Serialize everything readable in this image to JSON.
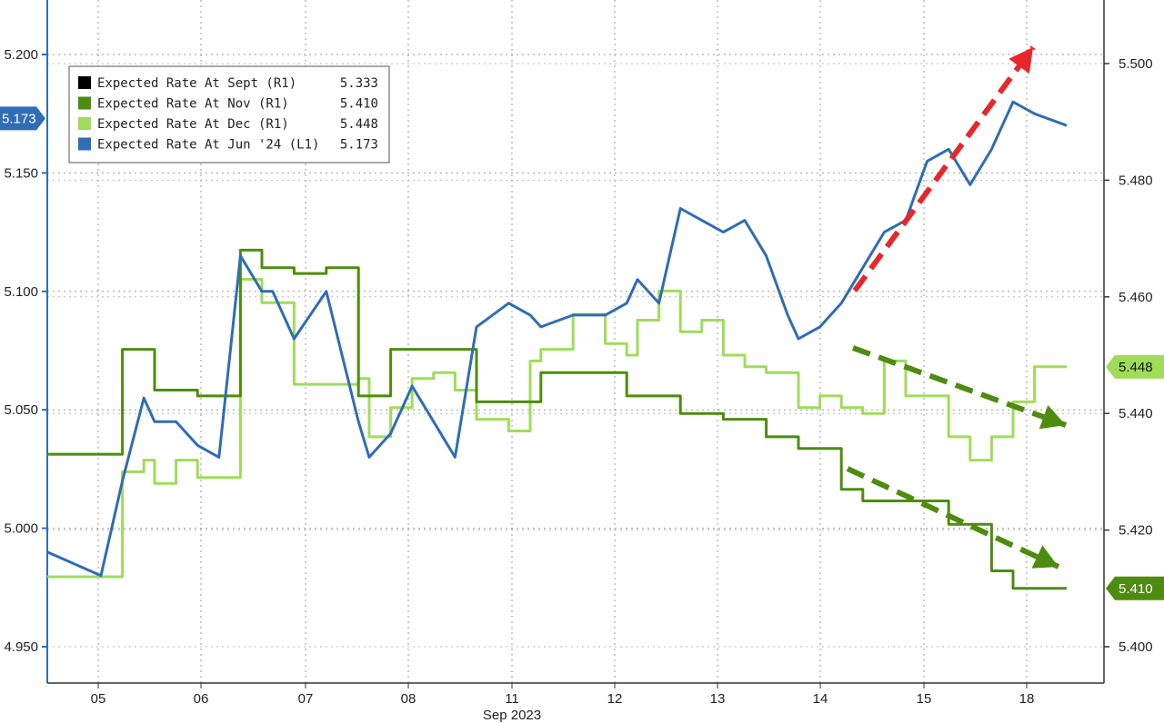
{
  "chart_data": {
    "type": "line",
    "xlabel": "Sep 2023",
    "x_ticks": [
      "05",
      "06",
      "07",
      "08",
      "11",
      "12",
      "13",
      "14",
      "15",
      "18"
    ],
    "left_axis": {
      "ylim": [
        4.95,
        5.2
      ],
      "ticks": [
        "4.950",
        "5.000",
        "5.050",
        "5.100",
        "5.150",
        "5.200"
      ]
    },
    "right_axis": {
      "ylim": [
        5.4,
        5.5
      ],
      "ticks": [
        "5.400",
        "5.420",
        "5.440",
        "5.460",
        "5.480",
        "5.500"
      ]
    },
    "grid": true,
    "legend_position": "top-left",
    "series": [
      {
        "name": "Expected Rate At Sept (R1)",
        "last": "5.333",
        "axis": "right",
        "color": "#000000",
        "x": [],
        "y": []
      },
      {
        "name": "Expected Rate At Nov (R1)",
        "last": "5.410",
        "axis": "right",
        "color": "#4e8c0f",
        "x": [
          0.0,
          0.5,
          0.7,
          0.9,
          1.0,
          1.2,
          1.4,
          1.6,
          1.8,
          2.0,
          2.1,
          2.3,
          2.6,
          2.9,
          3.0,
          3.2,
          3.4,
          3.6,
          3.8,
          4.0,
          4.3,
          4.5,
          4.6,
          4.9,
          5.2,
          5.4,
          5.5,
          5.7,
          5.9,
          6.1,
          6.3,
          6.5,
          6.7,
          6.9,
          7.0,
          7.2,
          7.4,
          7.6,
          7.8,
          8.0,
          8.2,
          8.4,
          8.6,
          8.8,
          9.0,
          9.2,
          9.5
        ],
        "y": [
          5.433,
          5.433,
          5.451,
          5.451,
          5.444,
          5.444,
          5.443,
          5.443,
          5.468,
          5.465,
          5.465,
          5.464,
          5.465,
          5.443,
          5.443,
          5.451,
          5.451,
          5.451,
          5.451,
          5.442,
          5.442,
          5.442,
          5.447,
          5.447,
          5.447,
          5.443,
          5.443,
          5.443,
          5.44,
          5.44,
          5.439,
          5.439,
          5.436,
          5.436,
          5.434,
          5.434,
          5.427,
          5.425,
          5.425,
          5.425,
          5.425,
          5.421,
          5.421,
          5.413,
          5.41,
          5.41,
          5.41
        ]
      },
      {
        "name": "Expected Rate At Dec (R1)",
        "last": "5.448",
        "axis": "right",
        "color": "#9fdc5a",
        "x": [
          0.0,
          0.5,
          0.7,
          0.9,
          1.0,
          1.2,
          1.4,
          1.6,
          1.8,
          2.0,
          2.1,
          2.3,
          2.6,
          2.9,
          3.0,
          3.2,
          3.4,
          3.6,
          3.8,
          4.0,
          4.3,
          4.5,
          4.6,
          4.9,
          5.2,
          5.4,
          5.5,
          5.7,
          5.9,
          6.1,
          6.3,
          6.5,
          6.7,
          6.9,
          7.0,
          7.2,
          7.4,
          7.6,
          7.8,
          8.0,
          8.2,
          8.4,
          8.6,
          8.8,
          9.0,
          9.2,
          9.5
        ],
        "y": [
          5.412,
          5.412,
          5.43,
          5.432,
          5.428,
          5.432,
          5.429,
          5.429,
          5.463,
          5.459,
          5.459,
          5.445,
          5.445,
          5.446,
          5.436,
          5.441,
          5.446,
          5.447,
          5.444,
          5.439,
          5.437,
          5.449,
          5.451,
          5.457,
          5.452,
          5.45,
          5.456,
          5.461,
          5.454,
          5.456,
          5.45,
          5.448,
          5.447,
          5.447,
          5.441,
          5.443,
          5.441,
          5.44,
          5.449,
          5.443,
          5.443,
          5.436,
          5.432,
          5.436,
          5.442,
          5.448,
          5.448
        ]
      },
      {
        "name": "Expected Rate At Jun '24 (L1)",
        "last": "5.173",
        "axis": "left",
        "color": "#2f6db4",
        "x": [
          0.0,
          0.5,
          0.7,
          0.9,
          1.0,
          1.2,
          1.4,
          1.6,
          1.8,
          2.0,
          2.1,
          2.3,
          2.6,
          2.9,
          3.0,
          3.2,
          3.4,
          3.6,
          3.8,
          4.0,
          4.3,
          4.5,
          4.6,
          4.9,
          5.2,
          5.4,
          5.5,
          5.7,
          5.9,
          6.1,
          6.3,
          6.5,
          6.7,
          6.9,
          7.0,
          7.2,
          7.4,
          7.6,
          7.8,
          8.0,
          8.2,
          8.4,
          8.6,
          8.8,
          9.0,
          9.2,
          9.5
        ],
        "y": [
          4.99,
          4.98,
          5.02,
          5.055,
          5.045,
          5.045,
          5.035,
          5.03,
          5.115,
          5.1,
          5.1,
          5.08,
          5.1,
          5.045,
          5.03,
          5.04,
          5.06,
          5.045,
          5.03,
          5.085,
          5.095,
          5.09,
          5.085,
          5.09,
          5.09,
          5.095,
          5.105,
          5.095,
          5.135,
          5.13,
          5.125,
          5.13,
          5.115,
          5.09,
          5.08,
          5.085,
          5.095,
          5.11,
          5.125,
          5.13,
          5.155,
          5.16,
          5.145,
          5.16,
          5.18,
          5.175,
          5.17
        ]
      }
    ],
    "badges": {
      "left": "5.173",
      "right_dec": "5.448",
      "right_nov": "5.410"
    },
    "annotations": [
      {
        "type": "arrow",
        "color": "#e8262b",
        "direction": "up"
      },
      {
        "type": "arrow",
        "color": "#4e8c0f",
        "direction": "down"
      },
      {
        "type": "arrow",
        "color": "#4e8c0f",
        "direction": "down"
      }
    ]
  }
}
